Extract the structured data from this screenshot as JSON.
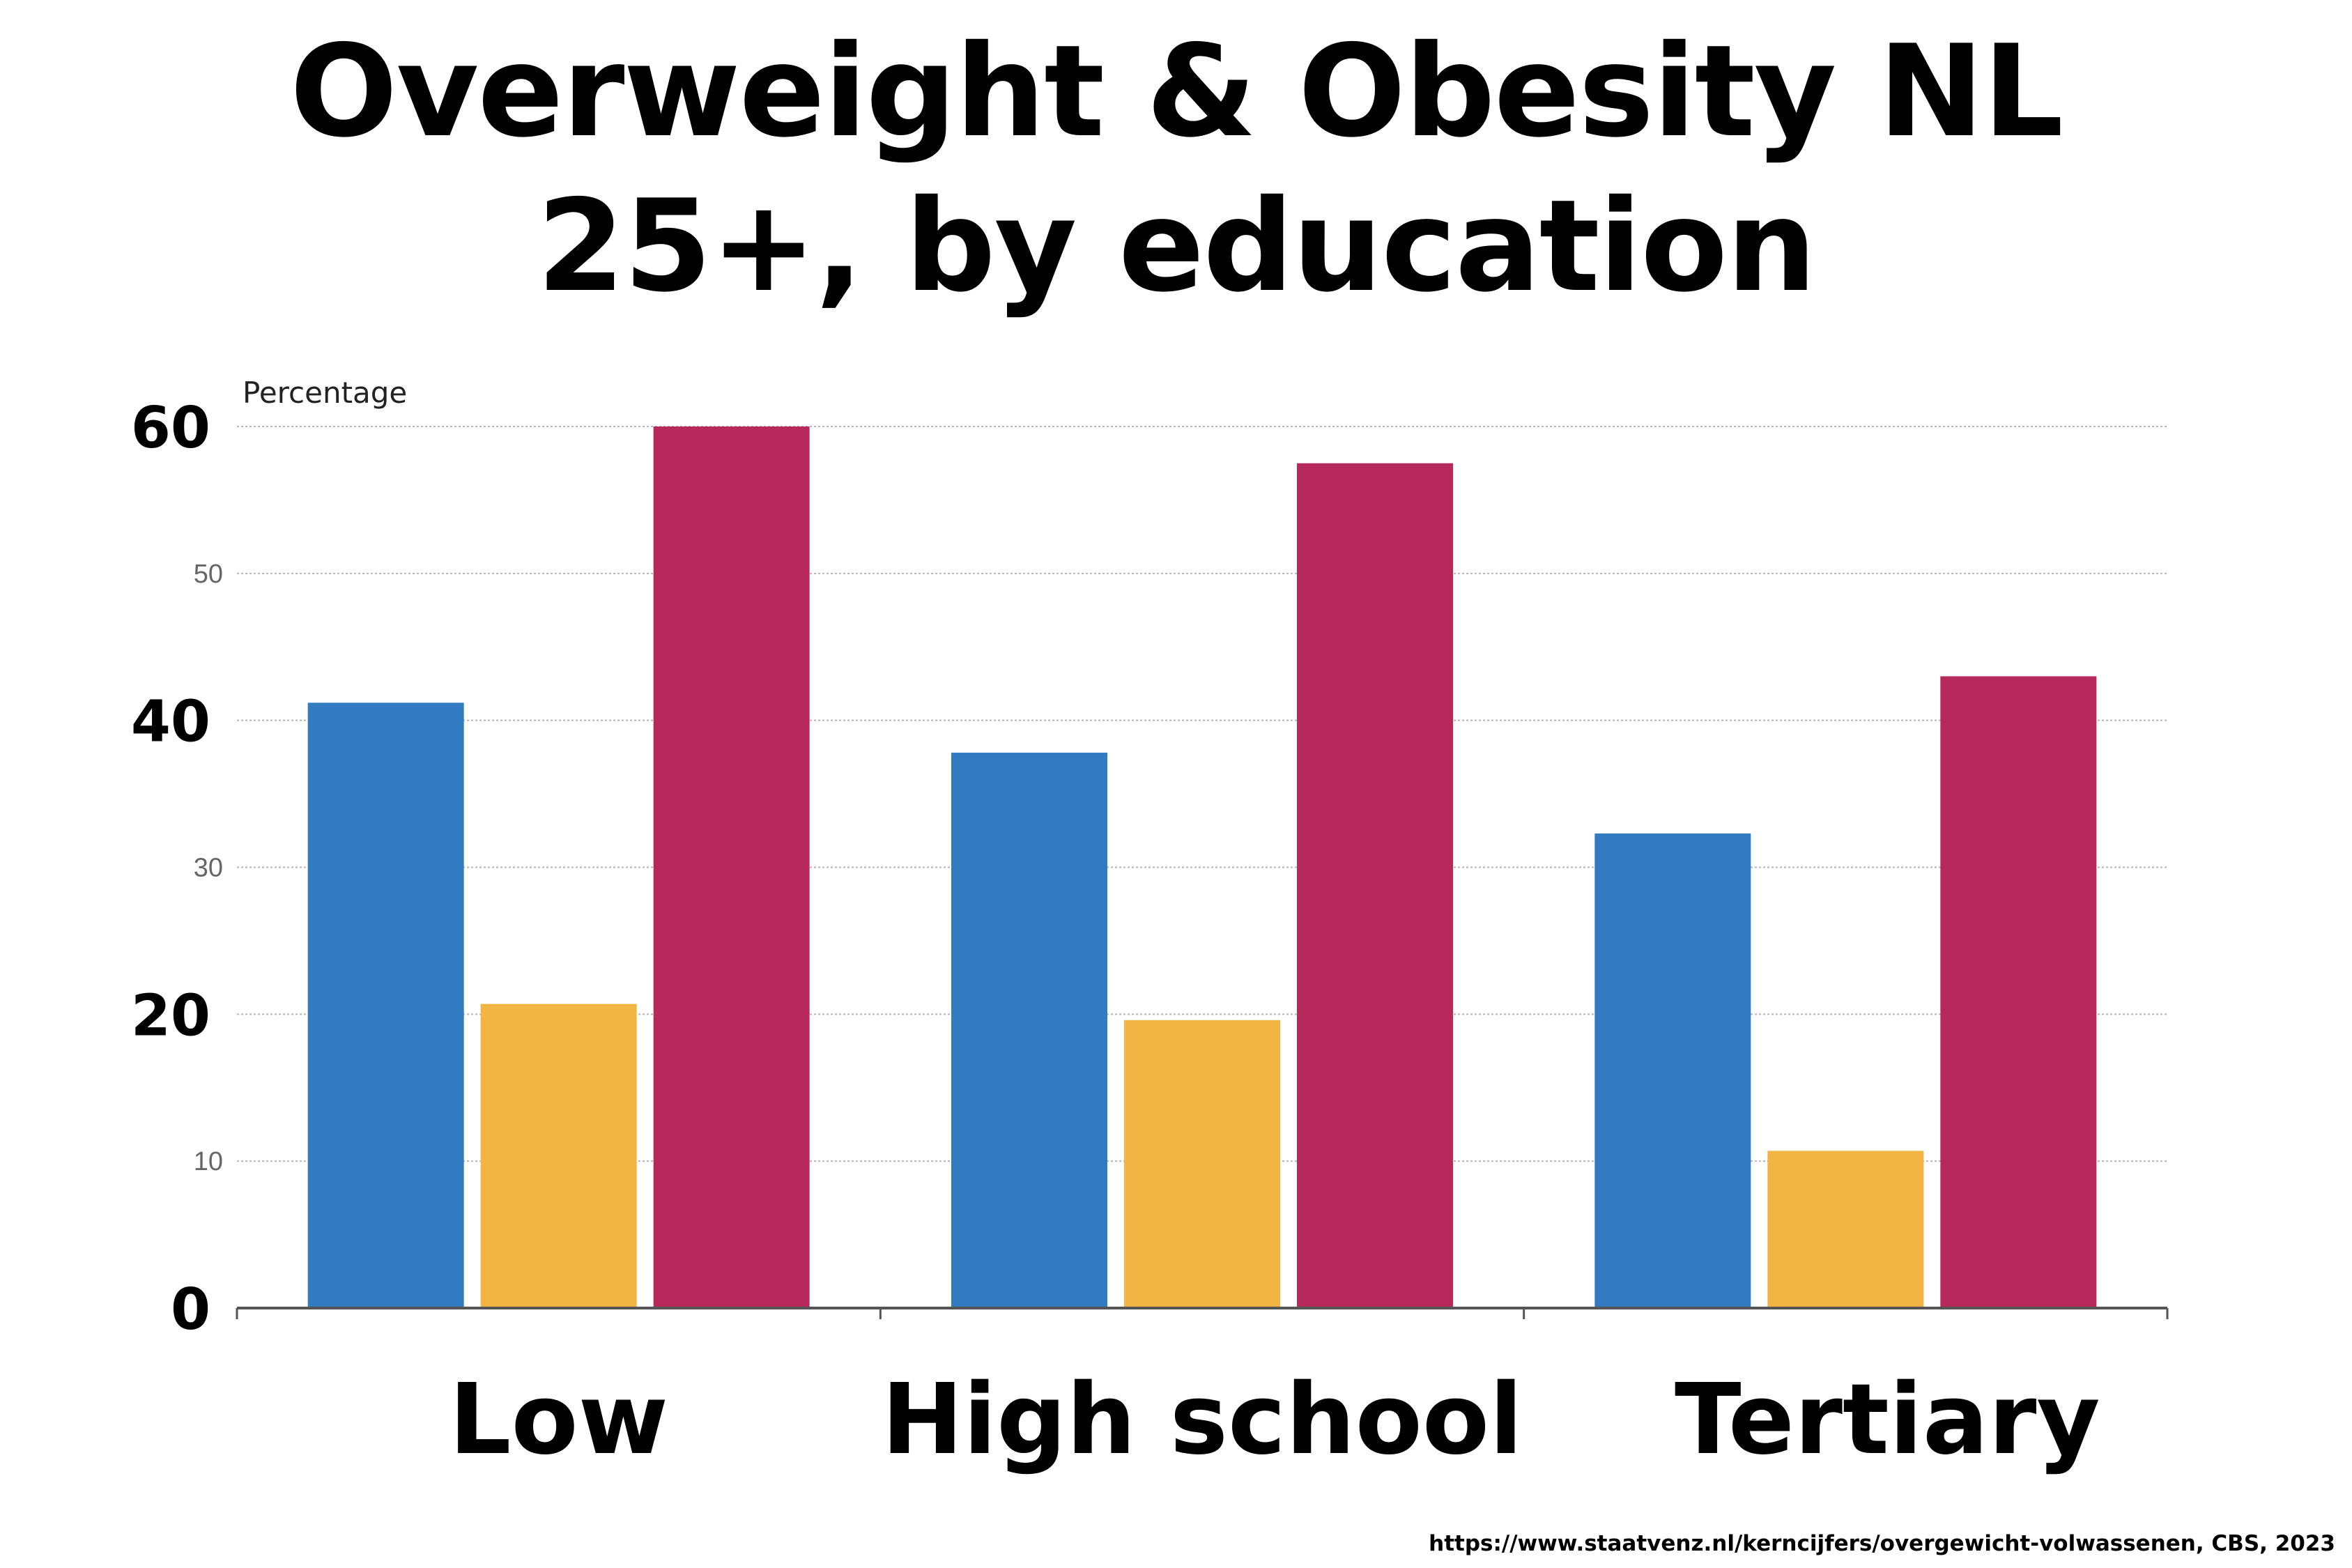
{
  "title_lines": [
    "Overweight & Obesity NL",
    "25+, by education"
  ],
  "source": "https://www.staatvenz.nl/kerncijfers/overgewicht-volwassenen, CBS, 2023",
  "chart_data": {
    "type": "bar",
    "ylabel": "Percentage",
    "ylim": [
      0,
      60
    ],
    "grid": true,
    "categories": [
      "Low",
      "High school",
      "Tertiary"
    ],
    "series": [
      {
        "color": "#337BC1",
        "values": [
          41.2,
          37.8,
          32.3
        ]
      },
      {
        "color": "#F2B544",
        "values": [
          20.7,
          19.6,
          10.7
        ]
      },
      {
        "color": "#B8295B",
        "values": [
          60.0,
          57.5,
          43.0
        ]
      }
    ],
    "y_ticks_minor": [
      {
        "value": 10,
        "label": "10"
      },
      {
        "value": 30,
        "label": "30"
      },
      {
        "value": 50,
        "label": "50"
      }
    ],
    "y_ticks_major": [
      {
        "value": 0,
        "label": "0"
      },
      {
        "value": 20,
        "label": "20"
      },
      {
        "value": 40,
        "label": "40"
      },
      {
        "value": 60,
        "label": "60"
      }
    ]
  }
}
